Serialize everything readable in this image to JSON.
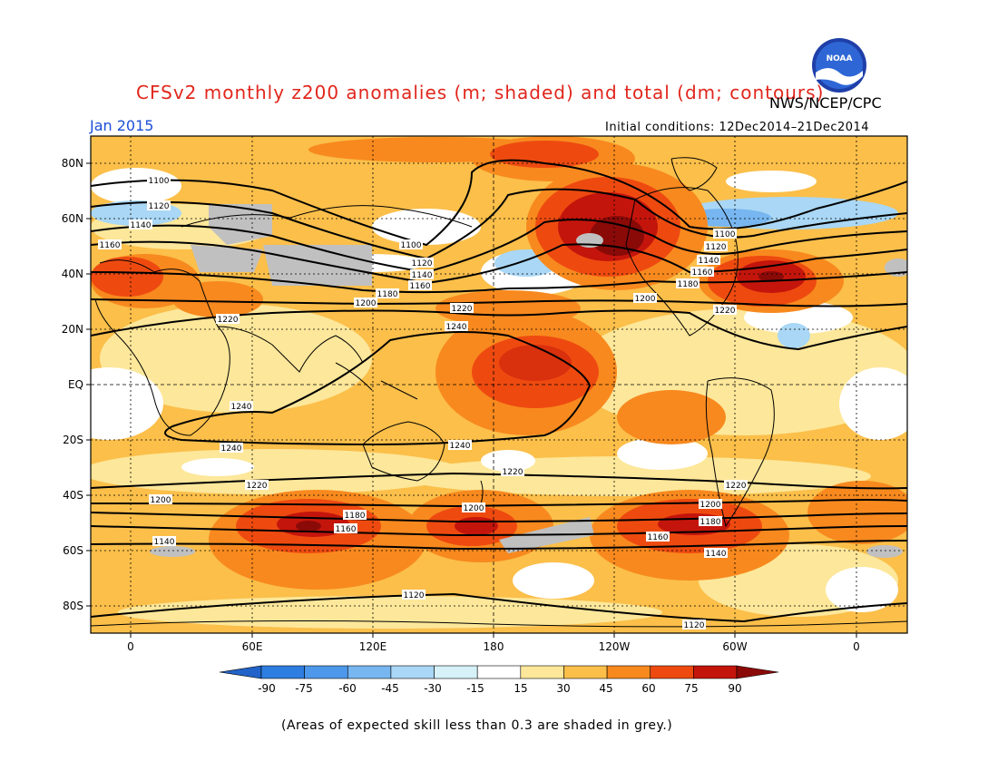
{
  "header": {
    "title": "CFSv2 monthly z200 anomalies (m; shaded) and total (dm; contours)",
    "org": "NWS/NCEP/CPC",
    "month": "Jan 2015",
    "initial_conditions": "Initial conditions: 12Dec2014–21Dec2014",
    "logo_text": "NOAA"
  },
  "map": {
    "lat_labels": [
      "80N",
      "60N",
      "40N",
      "20N",
      "EQ",
      "20S",
      "40S",
      "60S",
      "80S"
    ],
    "lon_labels": [
      "0",
      "60E",
      "120E",
      "180",
      "120W",
      "60W",
      "0"
    ],
    "contour_labels": [
      "1100",
      "1120",
      "1140",
      "1160",
      "1180",
      "1200",
      "1220",
      "1240"
    ],
    "grey_note": "Areas of expected skill less than 0.3 are shaded in grey."
  },
  "colorbar": {
    "ticks": [
      "-90",
      "-75",
      "-60",
      "-45",
      "-30",
      "-15",
      "15",
      "30",
      "45",
      "60",
      "75",
      "90"
    ],
    "colors": [
      "#2163c8",
      "#2e7de0",
      "#4d98ea",
      "#77b6f0",
      "#a9d7f5",
      "#d6f1f8",
      "#ffffff",
      "#fde79a",
      "#fbbf4a",
      "#f8891e",
      "#ee4a10",
      "#c4150c",
      "#8a0a08"
    ]
  },
  "footnote": "(Areas of expected skill less than 0.3 are shaded in grey.)"
}
